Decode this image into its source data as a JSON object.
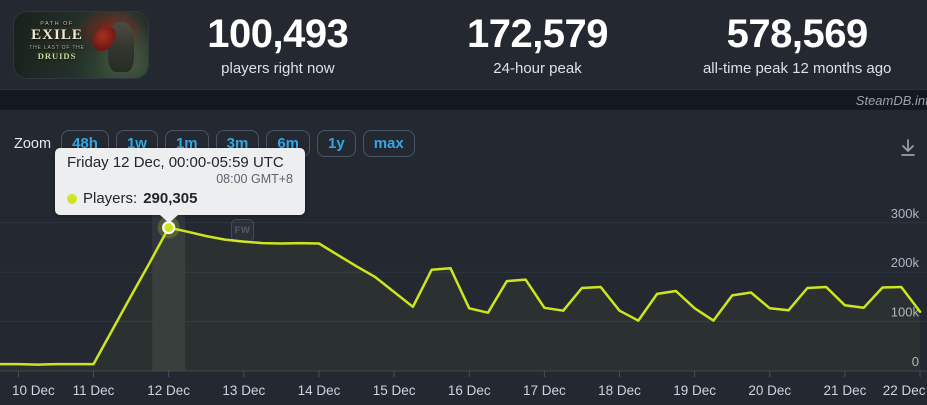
{
  "header": {
    "thumbnail": {
      "logo_top": "PATH OF",
      "logo_main": "EXILE",
      "logo_sub": "THE LAST OF THE",
      "logo_sub2": "DRUIDS"
    },
    "stats": [
      {
        "value": "100,493",
        "label": "players right now"
      },
      {
        "value": "172,579",
        "label": "24-hour peak"
      },
      {
        "value": "578,569",
        "label": "all-time peak 12 months ago"
      }
    ]
  },
  "watermark": "SteamDB.info",
  "watermark_badge": "FW",
  "toolbar": {
    "zoom_label": "Zoom",
    "ranges": [
      "48h",
      "1w",
      "1m",
      "3m",
      "6m",
      "1y",
      "max"
    ]
  },
  "tooltip": {
    "title": "Friday 12 Dec, 00:00-05:59 UTC",
    "local_time": "08:00 GMT+8",
    "series_label": "Players:",
    "value": "290,305"
  },
  "colors": {
    "line": "#cde51f",
    "accent_blue": "#35a7e2",
    "panel_bg": "#232831",
    "strip_bg": "#14181f",
    "tooltip_bg": "#f4f5f6"
  },
  "chart_data": {
    "type": "line",
    "start": "10 Dec 00:00 UTC",
    "interval_hours": 6,
    "x_tick_labels": [
      "10 Dec",
      "11 Dec",
      "12 Dec",
      "13 Dec",
      "14 Dec",
      "15 Dec",
      "16 Dec",
      "17 Dec",
      "18 Dec",
      "19 Dec",
      "20 Dec",
      "21 Dec",
      "22 Dec"
    ],
    "y_ticks": [
      {
        "label": "0",
        "value": 0
      },
      {
        "label": "100k",
        "value": 100000
      },
      {
        "label": "200k",
        "value": 200000
      },
      {
        "label": "300k",
        "value": 300000
      }
    ],
    "ylim": [
      0,
      528000
    ],
    "grid": true,
    "legend": false,
    "series": [
      {
        "name": "Players",
        "color": "#cde51f",
        "values": [
          14000,
          13000,
          14000,
          14000,
          14000,
          83000,
          152000,
          220000,
          290305,
          282000,
          273000,
          266000,
          262000,
          259000,
          258000,
          259000,
          258000,
          235000,
          212000,
          190000,
          160000,
          130000,
          205000,
          208000,
          127000,
          118000,
          182000,
          185000,
          128000,
          122000,
          168000,
          170000,
          122000,
          102000,
          156000,
          162000,
          127000,
          102000,
          153000,
          159000,
          127000,
          123000,
          168000,
          170000,
          133000,
          128000,
          169000,
          170000,
          120000
        ]
      }
    ],
    "highlight_point": {
      "index": 8,
      "value": 290305,
      "label": "Friday 12 Dec, 00:00-05:59 UTC"
    }
  }
}
